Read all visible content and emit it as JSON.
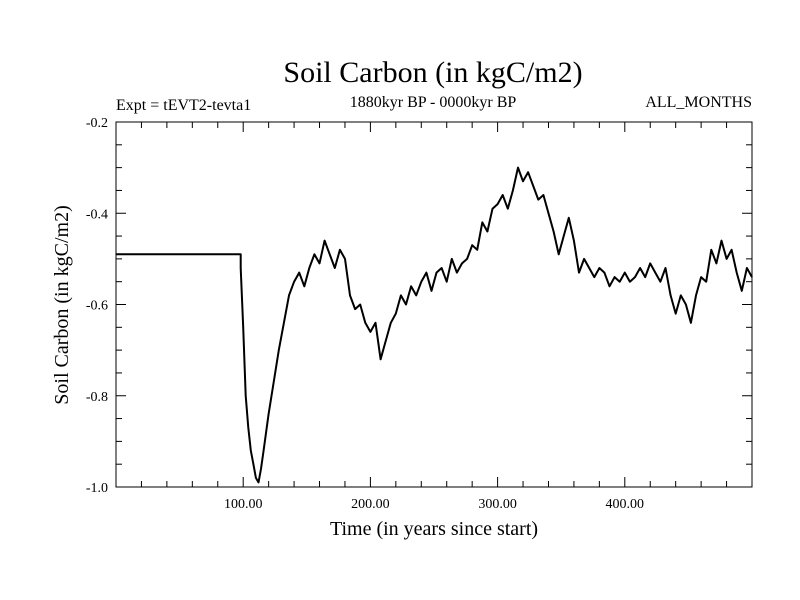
{
  "chart_data": {
    "type": "line",
    "title": "Soil Carbon (in kgC/m2)",
    "subtitle_left": "Expt = tEVT2-tevta1",
    "subtitle_center": "1880kyr BP - 0000kyr BP",
    "subtitle_right": "ALL_MONTHS",
    "xlabel": "Time (in years since start)",
    "ylabel": "Soil Carbon (in kgC/m2)",
    "xlim": [
      0,
      500
    ],
    "ylim": [
      -1.0,
      -0.2
    ],
    "x_ticks": [
      100,
      200,
      300,
      400
    ],
    "x_tick_labels": [
      "100.00",
      "200.00",
      "300.00",
      "400.00"
    ],
    "y_ticks": [
      -1.0,
      -0.8,
      -0.6,
      -0.4,
      -0.2
    ],
    "y_tick_labels": [
      "-1.0",
      "-0.8",
      "-0.6",
      "-0.4",
      "-0.2"
    ],
    "series": [
      {
        "name": "Soil Carbon",
        "color": "#000000",
        "x": [
          0,
          98,
          98,
          100,
          102,
          104,
          106,
          108,
          110,
          112,
          114,
          116,
          118,
          120,
          124,
          128,
          132,
          136,
          140,
          144,
          148,
          152,
          156,
          160,
          164,
          168,
          172,
          176,
          180,
          184,
          188,
          192,
          196,
          200,
          204,
          208,
          212,
          216,
          220,
          224,
          228,
          232,
          236,
          240,
          244,
          248,
          252,
          256,
          260,
          264,
          268,
          272,
          276,
          280,
          284,
          288,
          292,
          296,
          300,
          304,
          308,
          312,
          316,
          320,
          324,
          328,
          332,
          336,
          340,
          344,
          348,
          352,
          356,
          360,
          364,
          368,
          372,
          376,
          380,
          384,
          388,
          392,
          396,
          400,
          404,
          408,
          412,
          416,
          420,
          424,
          428,
          432,
          436,
          440,
          444,
          448,
          452,
          456,
          460,
          464,
          468,
          472,
          476,
          480,
          484,
          488,
          492,
          496,
          500
        ],
        "y": [
          -0.49,
          -0.49,
          -0.52,
          -0.65,
          -0.8,
          -0.87,
          -0.92,
          -0.95,
          -0.98,
          -0.99,
          -0.96,
          -0.92,
          -0.88,
          -0.84,
          -0.77,
          -0.7,
          -0.64,
          -0.58,
          -0.55,
          -0.53,
          -0.56,
          -0.52,
          -0.49,
          -0.51,
          -0.46,
          -0.49,
          -0.52,
          -0.48,
          -0.5,
          -0.58,
          -0.61,
          -0.6,
          -0.64,
          -0.66,
          -0.64,
          -0.72,
          -0.68,
          -0.64,
          -0.62,
          -0.58,
          -0.6,
          -0.56,
          -0.58,
          -0.55,
          -0.53,
          -0.57,
          -0.53,
          -0.52,
          -0.55,
          -0.5,
          -0.53,
          -0.51,
          -0.5,
          -0.47,
          -0.48,
          -0.42,
          -0.44,
          -0.39,
          -0.38,
          -0.36,
          -0.39,
          -0.35,
          -0.3,
          -0.33,
          -0.31,
          -0.34,
          -0.37,
          -0.36,
          -0.4,
          -0.44,
          -0.49,
          -0.45,
          -0.41,
          -0.46,
          -0.53,
          -0.5,
          -0.52,
          -0.54,
          -0.52,
          -0.53,
          -0.56,
          -0.54,
          -0.55,
          -0.53,
          -0.55,
          -0.54,
          -0.52,
          -0.54,
          -0.51,
          -0.53,
          -0.55,
          -0.52,
          -0.58,
          -0.62,
          -0.58,
          -0.6,
          -0.64,
          -0.58,
          -0.54,
          -0.55,
          -0.48,
          -0.51,
          -0.46,
          -0.5,
          -0.48,
          -0.53,
          -0.57,
          -0.52,
          -0.54
        ]
      }
    ]
  }
}
